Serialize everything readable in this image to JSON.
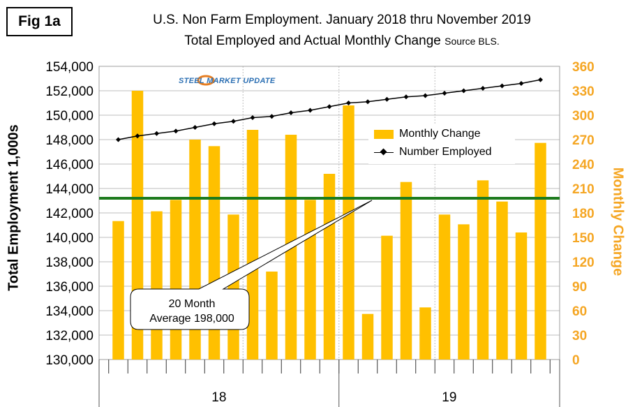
{
  "fig_label": "Fig 1a",
  "title_line1": "U.S. Non Farm Employment. January 2018 thru November 2019",
  "title_line2": "Total Employed and Actual Monthly Change",
  "title_source": "Source BLS.",
  "logo_text": "STEEL MARKET UPDATE",
  "callout_line1": "20 Month",
  "callout_line2": "Average 198,000",
  "colors": {
    "bar": "#FFC000",
    "line": "#000000",
    "average": "#1E7B1E",
    "right_axis": "#F5A623"
  },
  "chart_data": {
    "type": "bar",
    "ylabel": "Total Employment 1,000s",
    "y2label": "Monthly Change",
    "ylim": [
      130000,
      154000
    ],
    "y2lim": [
      0,
      360
    ],
    "yticks": [
      "130,000",
      "132,000",
      "134,000",
      "136,000",
      "138,000",
      "140,000",
      "142,000",
      "144,000",
      "146,000",
      "148,000",
      "150,000",
      "152,000",
      "154,000"
    ],
    "y2ticks": [
      "0",
      "30",
      "60",
      "90",
      "120",
      "150",
      "180",
      "210",
      "240",
      "270",
      "300",
      "330",
      "360"
    ],
    "year_labels": [
      "18",
      "19"
    ],
    "months_per_year": [
      12,
      11
    ],
    "grid": true,
    "legend_position": "right",
    "series": [
      {
        "name": "Monthly Change",
        "axis": "right",
        "type": "bar",
        "values": [
          170,
          330,
          182,
          196,
          270,
          262,
          178,
          282,
          108,
          276,
          196,
          228,
          312,
          56,
          152,
          218,
          64,
          178,
          166,
          220,
          194,
          156,
          266
        ]
      },
      {
        "name": "Number Employed",
        "axis": "left",
        "type": "line",
        "values": [
          148000,
          148300,
          148500,
          148700,
          149000,
          149300,
          149500,
          149800,
          149900,
          150200,
          150400,
          150700,
          151000,
          151100,
          151300,
          151500,
          151600,
          151800,
          152000,
          152200,
          152400,
          152600,
          152900
        ]
      },
      {
        "name": "20 Month Average",
        "axis": "right",
        "type": "hline",
        "value": 198
      }
    ]
  }
}
